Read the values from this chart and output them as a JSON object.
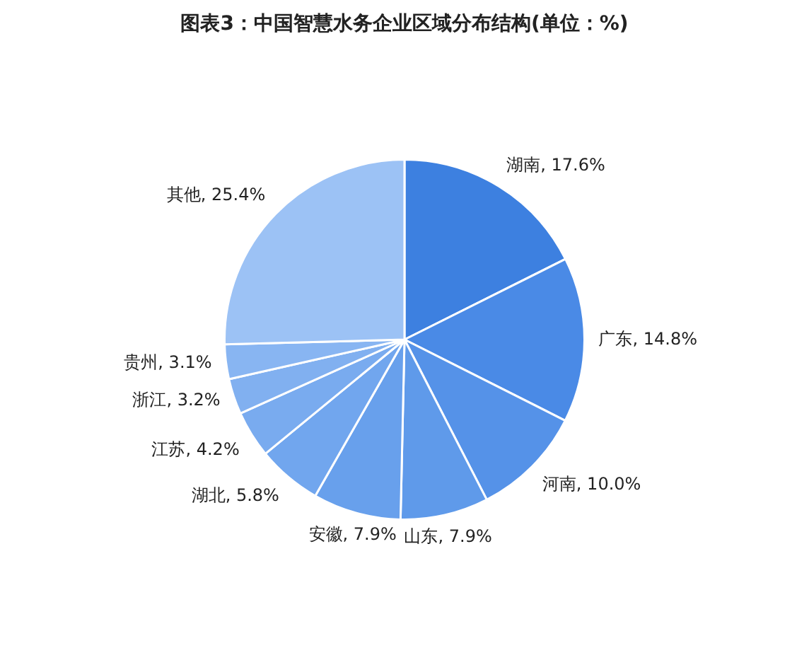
{
  "chart_data": {
    "type": "pie",
    "title": "图表3：中国智慧水务企业区域分布结构(单位：%)",
    "categories": [
      "湖南",
      "广东",
      "河南",
      "山东",
      "安徽",
      "湖北",
      "江苏",
      "浙江",
      "贵州",
      "其他"
    ],
    "values": [
      17.6,
      14.8,
      10.0,
      7.9,
      7.9,
      5.8,
      4.2,
      3.2,
      3.1,
      25.4
    ],
    "value_labels": [
      "17.6%",
      "14.8%",
      "10.0%",
      "7.9%",
      "7.9%",
      "5.8%",
      "4.2%",
      "3.2%",
      "3.1%",
      "25.4%"
    ],
    "colors": [
      "#3d80e0",
      "#4a8ae6",
      "#5592e8",
      "#5f9aea",
      "#68a0ec",
      "#71a6ee",
      "#79abef",
      "#81b0f0",
      "#88b5f2",
      "#9cc2f5"
    ],
    "legend": false
  }
}
